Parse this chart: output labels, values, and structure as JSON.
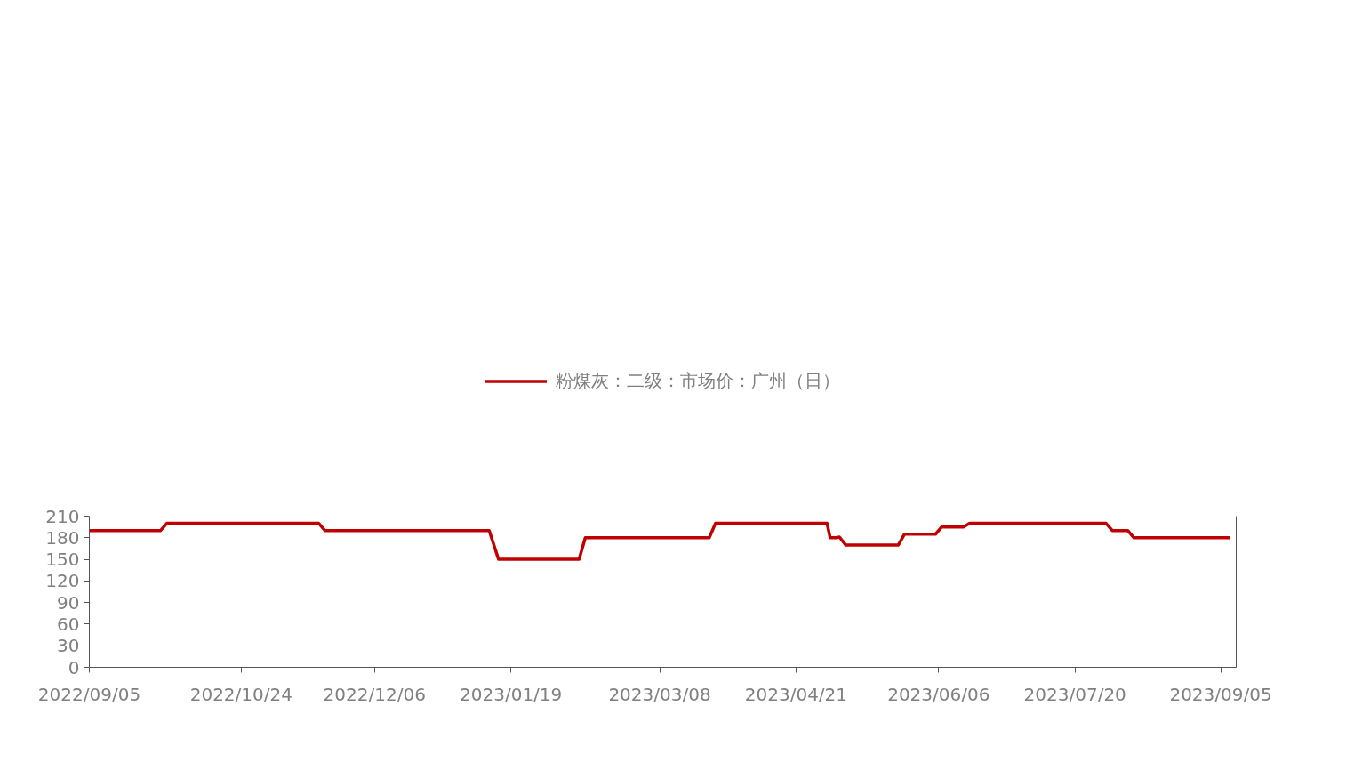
{
  "chart_data": {
    "type": "line",
    "line_style": "solid",
    "marker": "none",
    "grid": false,
    "legend": "top",
    "x": [
      "2022-09-05",
      "2022-09-28",
      "2022-09-30",
      "2022-11-18",
      "2022-11-20",
      "2023-01-12",
      "2023-01-15",
      "2023-02-10",
      "2023-02-12",
      "2023-03-24",
      "2023-03-26",
      "2023-05-01",
      "2023-05-02",
      "2023-05-04",
      "2023-05-05",
      "2023-05-07",
      "2023-05-24",
      "2023-05-26",
      "2023-06-05",
      "2023-06-07",
      "2023-06-14",
      "2023-06-16",
      "2023-07-30",
      "2023-08-01",
      "2023-08-06",
      "2023-08-08",
      "2023-09-08"
    ],
    "series": [
      {
        "name": "粉煤灰：二级：市场价：广州（日）",
        "color": "#c00000",
        "values": [
          190,
          190,
          200,
          200,
          190,
          190,
          150,
          150,
          180,
          180,
          200,
          200,
          180,
          180,
          181,
          170,
          170,
          185,
          185,
          195,
          195,
          200,
          200,
          190,
          190,
          180,
          180
        ]
      }
    ],
    "xlim": [
      "2022-09-05",
      "2023-09-10"
    ],
    "xticks": [
      {
        "value": "2022-09-05",
        "label": "2022/09/05"
      },
      {
        "value": "2022-10-24",
        "label": "2022/10/24"
      },
      {
        "value": "2022-12-06",
        "label": "2022/12/06"
      },
      {
        "value": "2023-01-19",
        "label": "2023/01/19"
      },
      {
        "value": "2023-03-08",
        "label": "2023/03/08"
      },
      {
        "value": "2023-04-21",
        "label": "2023/04/21"
      },
      {
        "value": "2023-06-06",
        "label": "2023/06/06"
      },
      {
        "value": "2023-07-20",
        "label": "2023/07/20"
      },
      {
        "value": "2023-09-05",
        "label": "2023/09/05"
      }
    ],
    "ylim": [
      0,
      210
    ],
    "yticks": [
      0,
      30,
      60,
      90,
      120,
      150,
      180,
      210
    ]
  }
}
